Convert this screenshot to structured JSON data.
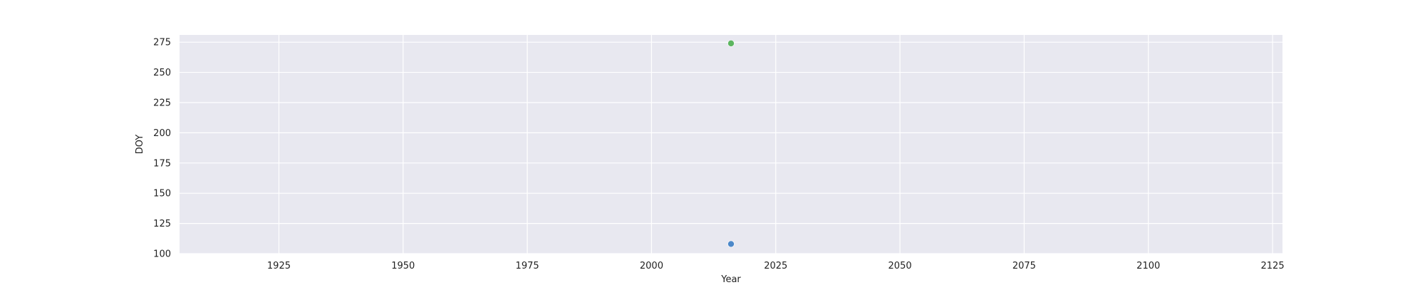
{
  "chart_data": {
    "type": "scatter",
    "title": "",
    "xlabel": "Year",
    "ylabel": "DOY",
    "xlim": [
      1905,
      2127
    ],
    "ylim": [
      100,
      281
    ],
    "xticks": [
      1925,
      1950,
      1975,
      2000,
      2025,
      2050,
      2075,
      2100,
      2125
    ],
    "yticks": [
      100,
      125,
      150,
      175,
      200,
      225,
      250,
      275
    ],
    "grid": true,
    "background": "#e8e8f0",
    "grid_color": "#ffffff",
    "points": [
      {
        "x": 2016,
        "y": 108,
        "color": "#3b7dc4"
      },
      {
        "x": 2016,
        "y": 274,
        "color": "#4caf50"
      }
    ]
  }
}
